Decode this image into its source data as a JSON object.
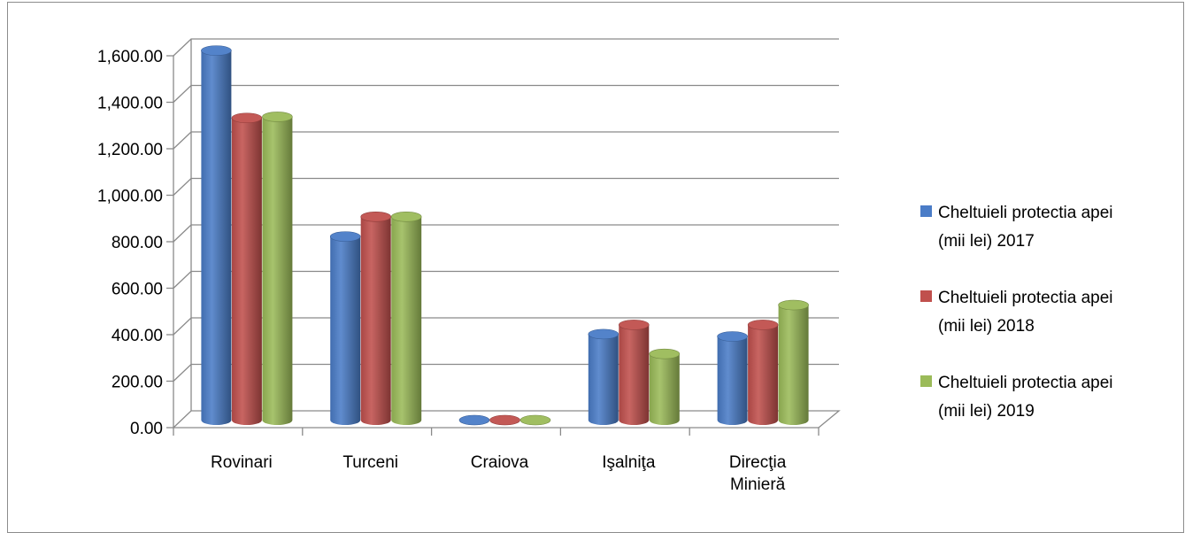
{
  "chart_data": {
    "type": "bar",
    "style": "3d-cylinder",
    "categories": [
      "Rovinari",
      "Turceni",
      "Craiova",
      "Işalniţa",
      "Direcţia Minieră"
    ],
    "series": [
      {
        "name": "Cheltuieli protectia apei (mii lei) 2017",
        "color": "#4a7cc7",
        "values": [
          1590,
          790,
          0,
          370,
          360
        ]
      },
      {
        "name": "Cheltuieli protectia apei (mii lei) 2018",
        "color": "#c0504d",
        "values": [
          1300,
          875,
          0,
          410,
          410
        ]
      },
      {
        "name": "Cheltuieli protectia apei (mii lei) 2019",
        "color": "#9bbb59",
        "values": [
          1305,
          875,
          0,
          285,
          495
        ]
      }
    ],
    "yticks": [
      "0.00",
      "200.00",
      "400.00",
      "600.00",
      "800.00",
      "1,000.00",
      "1,200.00",
      "1,400.00",
      "1,600.00"
    ],
    "ylim": [
      0,
      1600
    ],
    "grid": true,
    "legend_position": "right",
    "title": "",
    "xlabel": "",
    "ylabel": ""
  }
}
